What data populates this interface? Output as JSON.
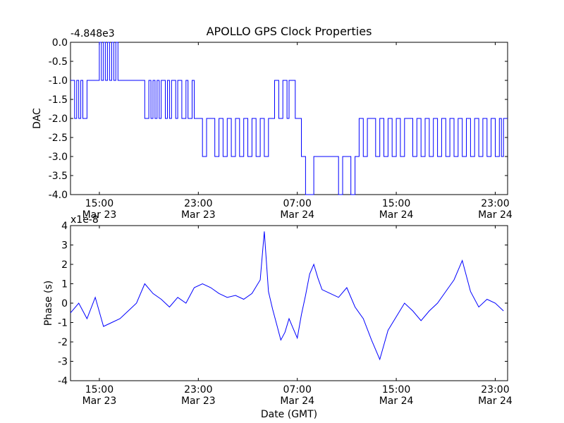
{
  "title": "APOLLO GPS Clock Properties",
  "chart_data": [
    {
      "type": "line",
      "ylabel": "DAC",
      "y_offset_text": "-4.848e3",
      "ylim": [
        -4.0,
        0.0
      ],
      "yticks": [
        0.0,
        -0.5,
        -1.0,
        -1.5,
        -2.0,
        -2.5,
        -3.0,
        -3.5,
        -4.0
      ],
      "ytick_labels": [
        "0.0",
        "-0.5",
        "-1.0",
        "-1.5",
        "-2.0",
        "-2.5",
        "-3.0",
        "-3.5",
        "-4.0"
      ],
      "xlim": [
        "Mar 23 12:40",
        "Mar 25 00:00"
      ],
      "xticks": [
        "Mar 23 15:00",
        "Mar 23 23:00",
        "Mar 24 07:00",
        "Mar 24 15:00",
        "Mar 24 23:00"
      ],
      "xtick_labels": [
        [
          "15:00",
          "Mar 23"
        ],
        [
          "23:00",
          "Mar 23"
        ],
        [
          "07:00",
          "Mar 24"
        ],
        [
          "15:00",
          "Mar 24"
        ],
        [
          "23:00",
          "Mar 24"
        ]
      ],
      "color": "#0000ff",
      "step": true,
      "x": [
        "Mar 23 12:40",
        "Mar 23 13:00",
        "Mar 23 13:10",
        "Mar 23 13:20",
        "Mar 23 13:30",
        "Mar 23 13:40",
        "Mar 23 14:00",
        "Mar 23 14:20",
        "Mar 23 15:00",
        "Mar 23 15:10",
        "Mar 23 15:20",
        "Mar 23 15:30",
        "Mar 23 15:40",
        "Mar 23 15:50",
        "Mar 23 16:00",
        "Mar 23 16:10",
        "Mar 23 16:20",
        "Mar 23 16:30",
        "Mar 23 18:40",
        "Mar 23 19:00",
        "Mar 23 19:10",
        "Mar 23 19:20",
        "Mar 23 19:30",
        "Mar 23 19:40",
        "Mar 23 19:50",
        "Mar 23 20:00",
        "Mar 23 20:20",
        "Mar 23 20:30",
        "Mar 23 20:40",
        "Mar 23 20:50",
        "Mar 23 21:10",
        "Mar 23 21:20",
        "Mar 23 21:40",
        "Mar 23 22:00",
        "Mar 23 22:10",
        "Mar 23 22:30",
        "Mar 23 22:40",
        "Mar 23 23:00",
        "Mar 23 23:20",
        "Mar 23 23:40",
        "Mar 24 00:20",
        "Mar 24 00:40",
        "Mar 24 01:00",
        "Mar 24 01:20",
        "Mar 24 01:40",
        "Mar 24 02:00",
        "Mar 24 02:20",
        "Mar 24 02:40",
        "Mar 24 03:00",
        "Mar 24 03:20",
        "Mar 24 03:40",
        "Mar 24 04:00",
        "Mar 24 04:20",
        "Mar 24 04:40",
        "Mar 24 05:10",
        "Mar 24 05:30",
        "Mar 24 05:50",
        "Mar 24 06:10",
        "Mar 24 06:20",
        "Mar 24 06:40",
        "Mar 24 06:50",
        "Mar 24 07:20",
        "Mar 24 07:40",
        "Mar 24 08:20",
        "Mar 24 08:40",
        "Mar 24 09:00",
        "Mar 24 09:20",
        "Mar 24 09:40",
        "Mar 24 10:00",
        "Mar 24 10:20",
        "Mar 24 10:40",
        "Mar 24 11:20",
        "Mar 24 11:40",
        "Mar 24 12:00",
        "Mar 24 12:20",
        "Mar 24 12:40",
        "Mar 24 13:00",
        "Mar 24 13:20",
        "Mar 24 13:40",
        "Mar 24 14:00",
        "Mar 24 14:20",
        "Mar 24 14:40",
        "Mar 24 15:00",
        "Mar 24 15:20",
        "Mar 24 15:40",
        "Mar 24 16:00",
        "Mar 24 16:20",
        "Mar 24 16:40",
        "Mar 24 17:00",
        "Mar 24 17:20",
        "Mar 24 17:40",
        "Mar 24 18:00",
        "Mar 24 18:20",
        "Mar 24 18:40",
        "Mar 24 19:00",
        "Mar 24 19:20",
        "Mar 24 19:40",
        "Mar 24 20:00",
        "Mar 24 20:20",
        "Mar 24 20:40",
        "Mar 24 21:00",
        "Mar 24 21:20",
        "Mar 24 21:40",
        "Mar 24 22:00",
        "Mar 24 22:20",
        "Mar 24 22:40",
        "Mar 24 23:00",
        "Mar 24 23:20",
        "Mar 24 23:30",
        "Mar 24 23:40"
      ],
      "y": [
        -1.0,
        -2.0,
        -1.0,
        -2.0,
        -1.0,
        -2.0,
        -1.0,
        -1.0,
        0.0,
        -1.0,
        0.0,
        -1.0,
        0.0,
        -1.0,
        0.0,
        -1.0,
        0.0,
        -1.0,
        -2.0,
        -1.0,
        -2.0,
        -1.0,
        -2.0,
        -1.0,
        -2.0,
        -1.0,
        -2.0,
        -1.0,
        -2.0,
        -1.0,
        -2.0,
        -1.0,
        -2.0,
        -1.0,
        -2.0,
        -1.0,
        -2.0,
        -2.0,
        -3.0,
        -2.0,
        -3.0,
        -2.0,
        -3.0,
        -2.0,
        -3.0,
        -2.0,
        -3.0,
        -2.0,
        -3.0,
        -2.0,
        -3.0,
        -2.0,
        -3.0,
        -2.0,
        -1.0,
        -2.0,
        -1.0,
        -2.0,
        -1.0,
        -1.0,
        -2.0,
        -3.0,
        -4.0,
        -3.0,
        -3.0,
        -3.0,
        -3.0,
        -3.0,
        -3.0,
        -4.0,
        -3.0,
        -4.0,
        -3.0,
        -2.0,
        -3.0,
        -2.0,
        -2.0,
        -3.0,
        -2.0,
        -3.0,
        -2.0,
        -3.0,
        -2.0,
        -3.0,
        -2.0,
        -2.0,
        -3.0,
        -2.0,
        -3.0,
        -2.0,
        -3.0,
        -2.0,
        -3.0,
        -2.0,
        -3.0,
        -2.0,
        -3.0,
        -2.0,
        -3.0,
        -2.0,
        -3.0,
        -2.0,
        -3.0,
        -2.0,
        -3.0,
        -2.0,
        -3.0,
        -2.0,
        -3.0,
        -2.0
      ]
    },
    {
      "type": "line",
      "ylabel": "Phase (s)",
      "xlabel": "Date (GMT)",
      "y_offset_text": "x1e-8",
      "ylim": [
        -4,
        4
      ],
      "yticks": [
        4,
        3,
        2,
        1,
        0,
        -1,
        -2,
        -3,
        -4
      ],
      "ytick_labels": [
        "4",
        "3",
        "2",
        "1",
        "0",
        "-1",
        "-2",
        "-3",
        "-4"
      ],
      "xlim": [
        "Mar 23 12:40",
        "Mar 25 00:00"
      ],
      "xticks": [
        "Mar 23 15:00",
        "Mar 23 23:00",
        "Mar 24 07:00",
        "Mar 24 15:00",
        "Mar 24 23:00"
      ],
      "xtick_labels": [
        [
          "15:00",
          "Mar 23"
        ],
        [
          "23:00",
          "Mar 23"
        ],
        [
          "07:00",
          "Mar 24"
        ],
        [
          "15:00",
          "Mar 24"
        ],
        [
          "23:00",
          "Mar 24"
        ]
      ],
      "color": "#0000ff",
      "x": [
        "Mar 23 12:40",
        "Mar 23 13:20",
        "Mar 23 14:00",
        "Mar 23 14:40",
        "Mar 23 15:20",
        "Mar 23 16:00",
        "Mar 23 16:40",
        "Mar 23 17:20",
        "Mar 23 18:00",
        "Mar 23 18:40",
        "Mar 23 19:20",
        "Mar 23 20:00",
        "Mar 23 20:40",
        "Mar 23 21:20",
        "Mar 23 22:00",
        "Mar 23 22:40",
        "Mar 23 23:20",
        "Mar 24 00:00",
        "Mar 24 00:40",
        "Mar 24 01:20",
        "Mar 24 02:00",
        "Mar 24 02:40",
        "Mar 24 03:20",
        "Mar 24 04:00",
        "Mar 24 04:20",
        "Mar 24 04:40",
        "Mar 24 05:00",
        "Mar 24 05:20",
        "Mar 24 05:40",
        "Mar 24 06:00",
        "Mar 24 06:20",
        "Mar 24 06:40",
        "Mar 24 07:00",
        "Mar 24 07:20",
        "Mar 24 07:40",
        "Mar 24 08:00",
        "Mar 24 08:20",
        "Mar 24 08:40",
        "Mar 24 09:00",
        "Mar 24 09:40",
        "Mar 24 10:20",
        "Mar 24 11:00",
        "Mar 24 11:40",
        "Mar 24 12:20",
        "Mar 24 13:00",
        "Mar 24 13:40",
        "Mar 24 14:20",
        "Mar 24 15:00",
        "Mar 24 15:40",
        "Mar 24 16:20",
        "Mar 24 17:00",
        "Mar 24 17:40",
        "Mar 24 18:20",
        "Mar 24 19:00",
        "Mar 24 19:40",
        "Mar 24 20:20",
        "Mar 24 21:00",
        "Mar 24 21:40",
        "Mar 24 22:20",
        "Mar 24 23:00",
        "Mar 24 23:40"
      ],
      "y": [
        -0.5,
        0.0,
        -0.8,
        0.3,
        -1.2,
        -1.0,
        -0.8,
        -0.4,
        0.0,
        1.0,
        0.5,
        0.2,
        -0.2,
        0.3,
        0.0,
        0.8,
        1.0,
        0.8,
        0.5,
        0.3,
        0.4,
        0.2,
        0.5,
        1.2,
        3.7,
        0.6,
        -0.3,
        -1.1,
        -1.9,
        -1.5,
        -0.8,
        -1.3,
        -1.8,
        -0.6,
        0.4,
        1.5,
        2.0,
        1.3,
        0.7,
        0.5,
        0.3,
        0.8,
        -0.2,
        -0.8,
        -1.9,
        -2.9,
        -1.4,
        -0.7,
        0.0,
        -0.4,
        -0.9,
        -0.4,
        0.0,
        0.6,
        1.2,
        2.2,
        0.6,
        -0.2,
        0.2,
        0.0,
        -0.4
      ]
    }
  ]
}
